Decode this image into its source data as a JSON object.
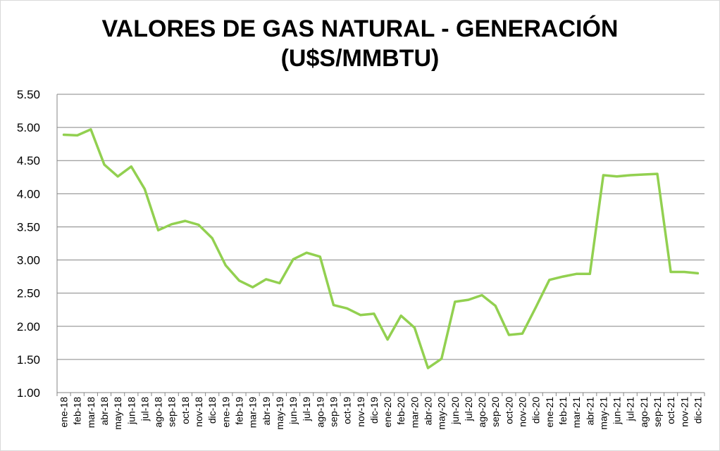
{
  "chart_data": {
    "type": "line",
    "title": "VALORES DE GAS NATURAL - GENERACIÓN",
    "subtitle": "(U$S/MMBTU)",
    "xlabel": "",
    "ylabel": "",
    "ylim": [
      1.0,
      5.5
    ],
    "yticks": [
      "1.00",
      "1.50",
      "2.00",
      "2.50",
      "3.00",
      "3.50",
      "4.00",
      "4.50",
      "5.00",
      "5.50"
    ],
    "grid": true,
    "legend": "none",
    "categories": [
      "ene-18",
      "feb-18",
      "mar-18",
      "abr-18",
      "may-18",
      "jun-18",
      "jul-18",
      "ago-18",
      "sep-18",
      "oct-18",
      "nov-18",
      "dic-18",
      "ene-19",
      "feb-19",
      "mar-19",
      "abr-19",
      "may-19",
      "jun-19",
      "jul-19",
      "ago-19",
      "sep-19",
      "oct-19",
      "nov-19",
      "dic-19",
      "ene-20",
      "feb-20",
      "mar-20",
      "abr-20",
      "may-20",
      "jun-20",
      "jul-20",
      "ago-20",
      "sep-20",
      "oct-20",
      "nov-20",
      "dic-20",
      "ene-21",
      "feb-21",
      "mar-21",
      "abr-21",
      "may-21",
      "jun-21",
      "jul-21",
      "ago-21",
      "sep-21",
      "oct-21",
      "nov-21",
      "dic-21"
    ],
    "series": [
      {
        "color": "#92d050",
        "values": [
          4.89,
          4.88,
          4.97,
          4.44,
          4.26,
          4.41,
          4.07,
          3.45,
          3.54,
          3.59,
          3.53,
          3.33,
          2.92,
          2.69,
          2.59,
          2.71,
          2.65,
          3.01,
          3.11,
          3.05,
          2.32,
          2.27,
          2.17,
          2.19,
          1.8,
          2.16,
          1.98,
          1.37,
          1.51,
          2.37,
          2.4,
          2.47,
          2.31,
          1.87,
          1.89,
          2.29,
          2.7,
          2.75,
          2.79,
          2.79,
          4.28,
          4.26,
          4.28,
          4.29,
          4.3,
          2.82,
          2.82,
          2.8
        ]
      }
    ]
  }
}
